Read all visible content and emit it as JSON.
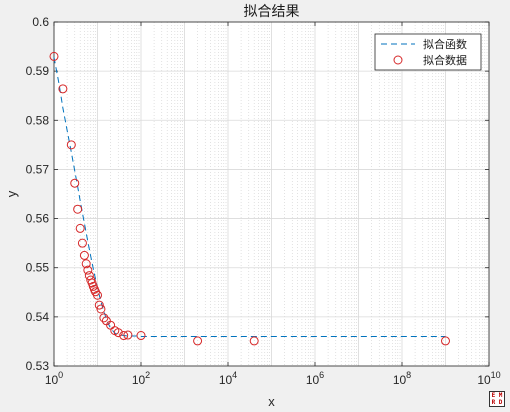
{
  "chart_data": {
    "type": "scatter",
    "title": "拟合结果",
    "xlabel": "x",
    "ylabel": "y",
    "xscale": "log",
    "xlim": [
      1,
      10000000000
    ],
    "ylim": [
      0.53,
      0.6
    ],
    "grid": true,
    "minor_grid": true,
    "legend_position": "top-right",
    "x_ticks": [
      1,
      100,
      10000,
      1000000,
      100000000,
      10000000000
    ],
    "x_tick_labels": [
      {
        "base": "10",
        "exp": "0"
      },
      {
        "base": "10",
        "exp": "2"
      },
      {
        "base": "10",
        "exp": "4"
      },
      {
        "base": "10",
        "exp": "6"
      },
      {
        "base": "10",
        "exp": "8"
      },
      {
        "base": "10",
        "exp": "10"
      }
    ],
    "y_ticks": [
      0.53,
      0.54,
      0.55,
      0.56,
      0.57,
      0.58,
      0.59,
      0.6
    ],
    "y_tick_labels": [
      "0.53",
      "0.54",
      "0.55",
      "0.56",
      "0.57",
      "0.58",
      "0.59",
      "0.6"
    ],
    "series": [
      {
        "name": "拟合函数",
        "kind": "line",
        "style": "dashed",
        "color": "#0072bd",
        "x": [
          1,
          1.3,
          1.6,
          2,
          2.5,
          3,
          3.5,
          4,
          5,
          6,
          7,
          8,
          9,
          10,
          12,
          14,
          16,
          18,
          20,
          25,
          30,
          40,
          50,
          60,
          80,
          100,
          150,
          200,
          300,
          500,
          1000,
          10000,
          1000000,
          100000000,
          1000000000
        ],
        "y": [
          0.5928,
          0.5875,
          0.5825,
          0.578,
          0.5735,
          0.5697,
          0.5665,
          0.5636,
          0.559,
          0.5553,
          0.5523,
          0.5498,
          0.5477,
          0.5459,
          0.5431,
          0.5411,
          0.5396,
          0.5385,
          0.5377,
          0.5367,
          0.5364,
          0.5362,
          0.5361,
          0.5361,
          0.5361,
          0.536,
          0.536,
          0.536,
          0.536,
          0.536,
          0.536,
          0.536,
          0.536,
          0.536,
          0.536
        ]
      },
      {
        "name": "拟合数据",
        "kind": "scatter",
        "marker": "circle",
        "color": "#d62728",
        "x": [
          1,
          1.6,
          2.5,
          3,
          3.5,
          4,
          4.5,
          5,
          5.5,
          6,
          6.5,
          7,
          7.5,
          8,
          8.5,
          9,
          10,
          11,
          12,
          14,
          16,
          20,
          25,
          30,
          40,
          50,
          100,
          2000,
          40000,
          1000000000
        ],
        "y": [
          0.593,
          0.5864,
          0.575,
          0.5672,
          0.5619,
          0.558,
          0.555,
          0.5525,
          0.5508,
          0.5495,
          0.5484,
          0.5475,
          0.5469,
          0.5462,
          0.5456,
          0.5451,
          0.5444,
          0.5424,
          0.5416,
          0.5398,
          0.5392,
          0.5383,
          0.5372,
          0.5368,
          0.5362,
          0.5363,
          0.5362,
          0.5351,
          0.5351,
          0.5351
        ]
      }
    ]
  },
  "colors": {
    "figure_background": "#f0f0f0",
    "axes_background": "#ffffff",
    "grid": "#d9d9d9",
    "axis": "#262626"
  },
  "logo": {
    "icon": "matlab-logo-icon",
    "text": "E M R D"
  }
}
